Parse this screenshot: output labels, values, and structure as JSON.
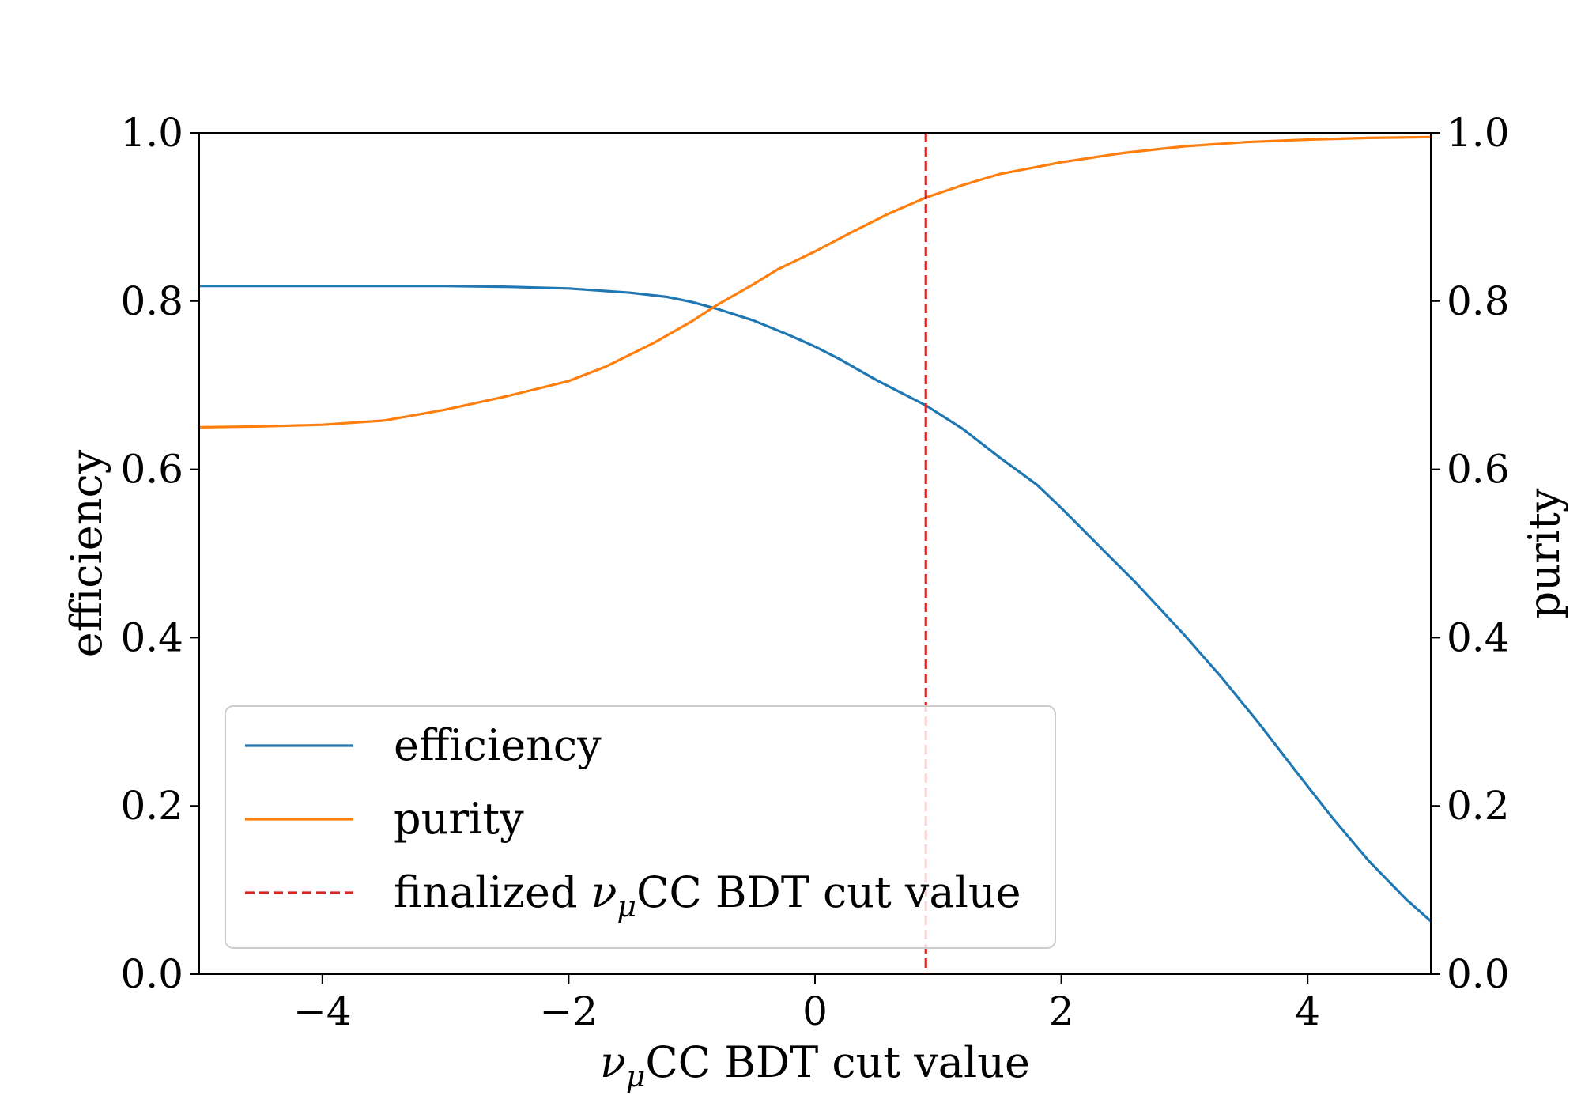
{
  "chart_data": {
    "type": "line",
    "xlabel": "νμCC BDT cut value",
    "ylabel_left": "efficiency",
    "ylabel_right": "purity",
    "xlim": [
      -5,
      5
    ],
    "ylim": [
      0,
      1
    ],
    "ylim_right": [
      0,
      1
    ],
    "x_ticks": [
      -4,
      -2,
      0,
      2,
      4
    ],
    "x_tick_labels": [
      "−4",
      "−2",
      "0",
      "2",
      "4"
    ],
    "y_ticks": [
      0.0,
      0.2,
      0.4,
      0.6,
      0.8,
      1.0
    ],
    "y_tick_labels": [
      "0.0",
      "0.2",
      "0.4",
      "0.6",
      "0.8",
      "1.0"
    ],
    "grid": false,
    "legend_position": "lower-left",
    "series": [
      {
        "name": "efficiency",
        "color": "#1f77b4",
        "axis": "left",
        "style": "solid",
        "x": [
          -5,
          -4.5,
          -4,
          -3.5,
          -3,
          -2.5,
          -2,
          -1.5,
          -1.2,
          -1,
          -0.8,
          -0.5,
          -0.2,
          0,
          0.2,
          0.5,
          0.9,
          1.2,
          1.5,
          1.8,
          2.0,
          2.3,
          2.6,
          3.0,
          3.3,
          3.6,
          3.9,
          4.2,
          4.5,
          4.8,
          5.0
        ],
        "y": [
          0.818,
          0.818,
          0.818,
          0.818,
          0.818,
          0.817,
          0.815,
          0.81,
          0.805,
          0.799,
          0.791,
          0.777,
          0.759,
          0.746,
          0.731,
          0.706,
          0.676,
          0.648,
          0.614,
          0.582,
          0.554,
          0.51,
          0.466,
          0.403,
          0.353,
          0.299,
          0.242,
          0.186,
          0.134,
          0.089,
          0.063
        ]
      },
      {
        "name": "purity",
        "color": "#ff7f0e",
        "axis": "right",
        "style": "solid",
        "x": [
          -5,
          -4.5,
          -4,
          -3.5,
          -3,
          -2.5,
          -2,
          -1.7,
          -1.3,
          -1.0,
          -0.8,
          -0.5,
          -0.3,
          0,
          0.3,
          0.6,
          0.9,
          1.2,
          1.5,
          2.0,
          2.5,
          3.0,
          3.5,
          4.0,
          4.5,
          5.0
        ],
        "y": [
          0.65,
          0.651,
          0.653,
          0.658,
          0.671,
          0.687,
          0.705,
          0.722,
          0.751,
          0.776,
          0.795,
          0.82,
          0.838,
          0.859,
          0.882,
          0.904,
          0.923,
          0.938,
          0.951,
          0.965,
          0.976,
          0.984,
          0.989,
          0.992,
          0.994,
          0.995
        ]
      }
    ],
    "vlines": [
      {
        "name": "finalized νμCC BDT cut value",
        "x": 0.9,
        "color": "#d62728",
        "style": "dashed"
      }
    ]
  }
}
